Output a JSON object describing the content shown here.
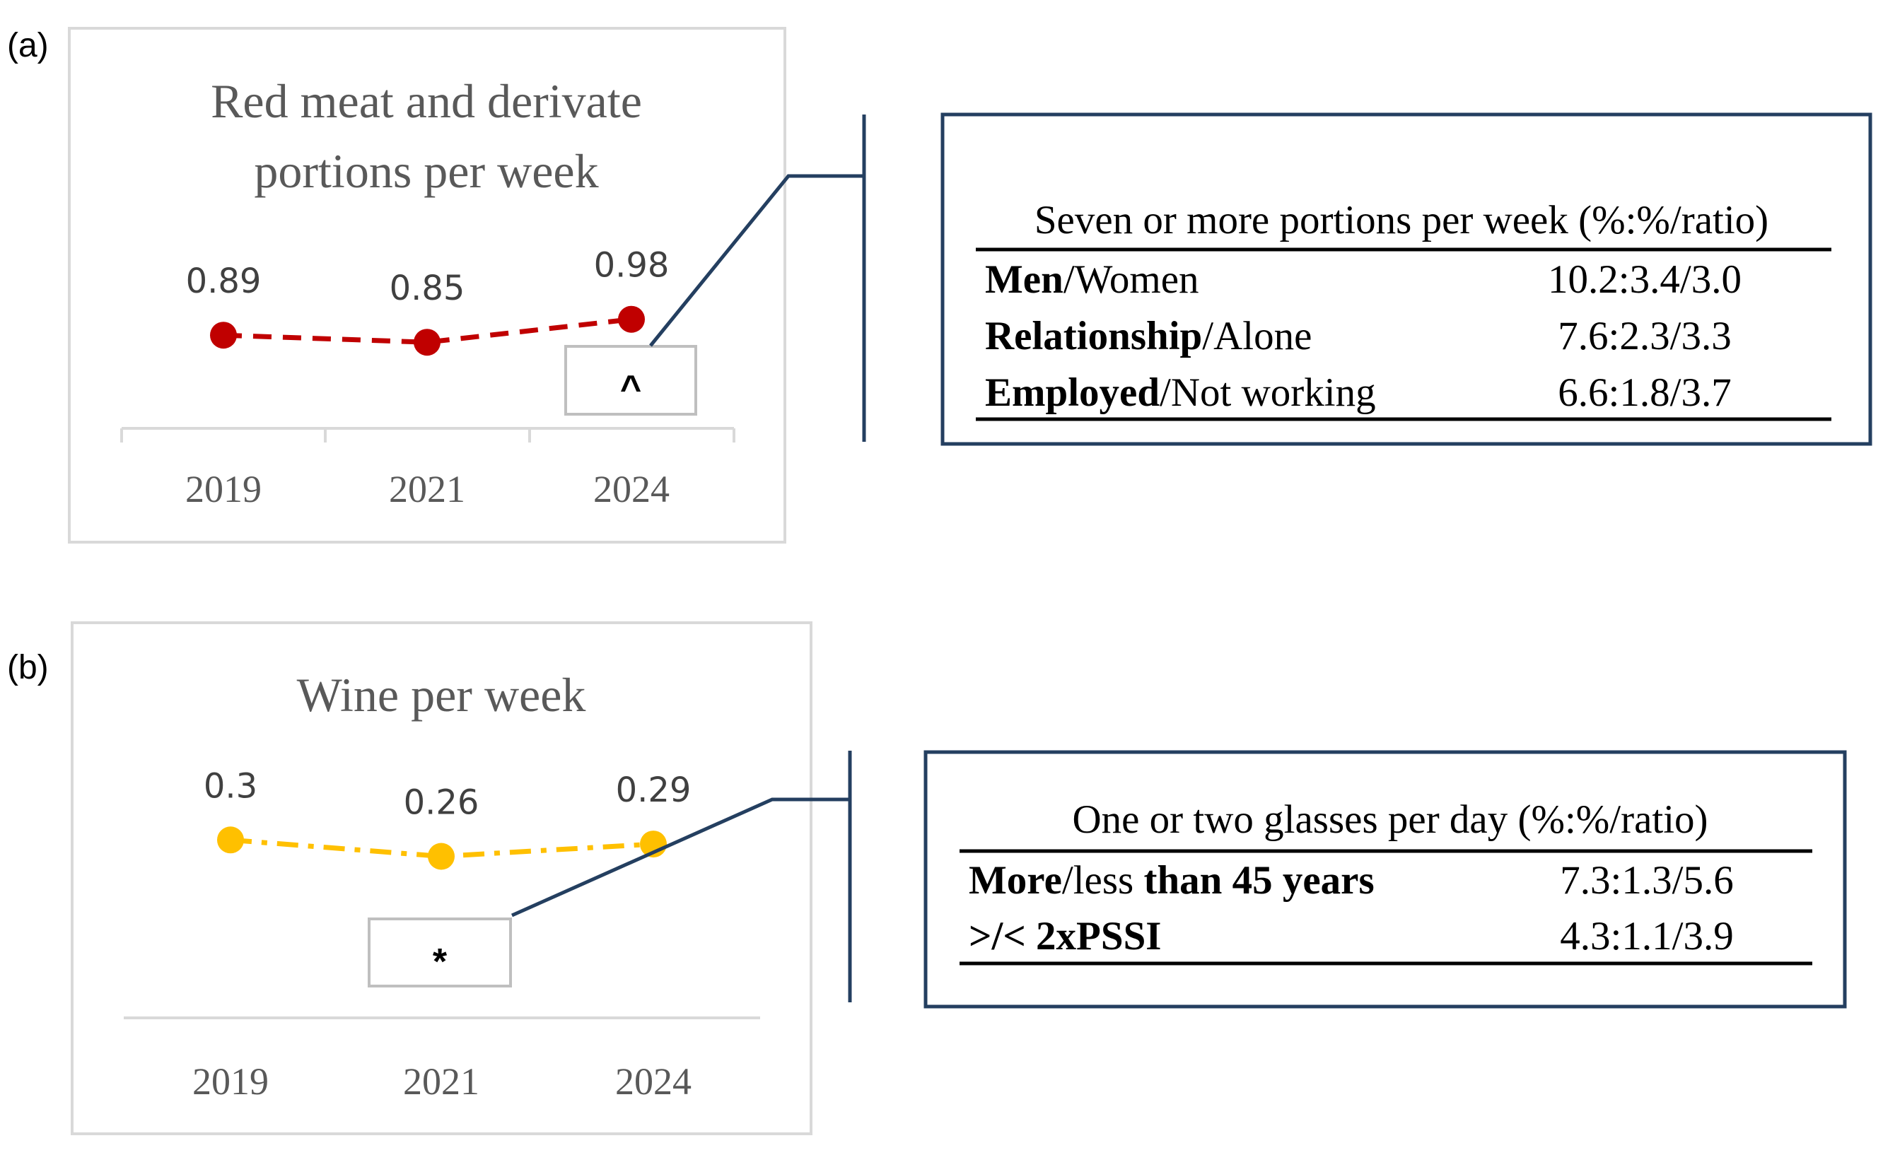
{
  "panels": [
    {
      "label": "(a)",
      "significance": "^",
      "table": {
        "header": "Seven or more portions per week (%:%/ratio)",
        "rows": [
          {
            "bold": "Men",
            "rest": "/Women",
            "value": "10.2:3.4/3.0"
          },
          {
            "bold": "Relationship",
            "rest": "/Alone",
            "value": "7.6:2.3/3.3"
          },
          {
            "bold": "Employed",
            "rest": "/Not working",
            "value": "6.6:1.8/3.7"
          }
        ]
      }
    },
    {
      "label": "(b)",
      "significance": "*",
      "table": {
        "header": "One or two glasses per day (%:%/ratio)",
        "rows": [
          {
            "bold": "More",
            "rest": "/less ",
            "bold2": "than 45  years",
            "value": "7.3:1.3/5.6"
          },
          {
            "bold": ">/<  2xPSSI",
            "rest": "",
            "value": "4.3:1.1/3.9"
          }
        ]
      }
    }
  ],
  "chart_data": [
    {
      "type": "line",
      "title": "Red meat and derivate portions per week",
      "title_lines": [
        "Red meat and derivate",
        "portions per week"
      ],
      "categories": [
        "2019",
        "2021",
        "2024"
      ],
      "series": [
        {
          "values": [
            0.89,
            0.85,
            0.98
          ],
          "color": "#C00000",
          "line_style": "dashed"
        }
      ],
      "data_labels": [
        "0.89",
        "0.85",
        "0.98"
      ],
      "grid": false,
      "legend": "none"
    },
    {
      "type": "line",
      "title": "Wine per week",
      "title_lines": [
        "Wine per week"
      ],
      "categories": [
        "2019",
        "2021",
        "2024"
      ],
      "series": [
        {
          "values": [
            0.3,
            0.26,
            0.29
          ],
          "color": "#FFC000",
          "line_style": "dash-dot"
        }
      ],
      "data_labels": [
        "0.3",
        "0.26",
        "0.29"
      ],
      "grid": false,
      "legend": "none"
    }
  ],
  "colors": {
    "connector": "#243F60",
    "frame": "#D9D9D9",
    "axis": "#D9D9D9"
  }
}
